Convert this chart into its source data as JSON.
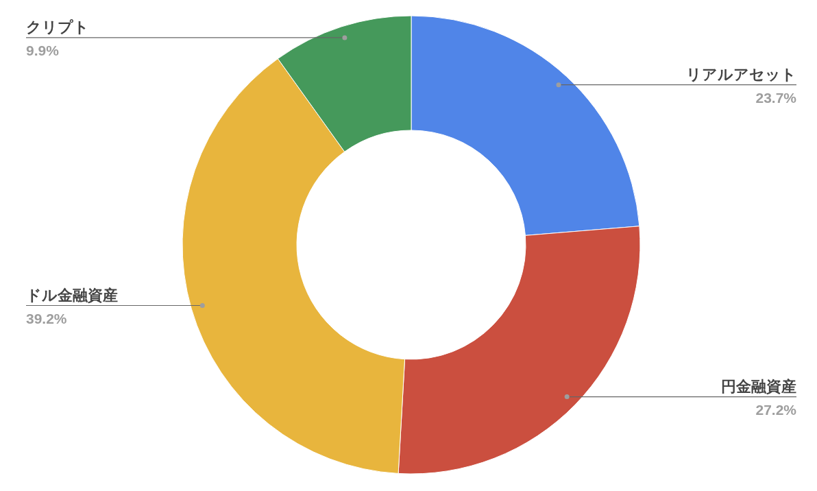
{
  "chart_data": {
    "type": "donut",
    "categories": [
      "リアルアセット",
      "円金融資産",
      "ドル金融資産",
      "クリプト"
    ],
    "values": [
      23.7,
      27.2,
      39.2,
      9.9
    ],
    "colors": [
      "#5085e8",
      "#cb4f3f",
      "#e8b53d",
      "#45995b"
    ],
    "value_labels": [
      "23.7%",
      "27.2%",
      "39.2%",
      "9.9%"
    ]
  }
}
